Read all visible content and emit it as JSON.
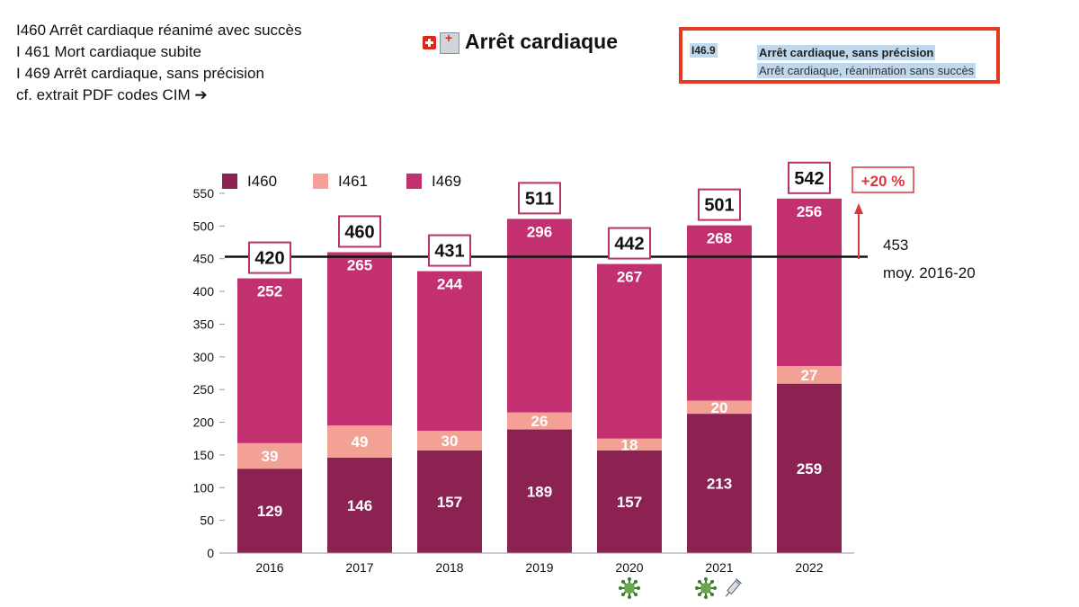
{
  "notes": [
    "I460 Arrêt cardiaque réanimé avec succès",
    "I 461 Mort cardiaque subite",
    "I 469 Arrêt cardiaque, sans précision",
    "cf. extrait PDF codes CIM ➔"
  ],
  "title": "Arrêt cardiaque",
  "cim_box": {
    "code": "I46.9",
    "line1": "Arrêt cardiaque, sans précision",
    "line2": "Arrêt cardiaque, réanimation sans succès"
  },
  "chart_data": {
    "type": "bar",
    "stacked": true,
    "categories": [
      "2016",
      "2017",
      "2018",
      "2019",
      "2020",
      "2021",
      "2022"
    ],
    "series": [
      {
        "name": "I460",
        "values": [
          129,
          146,
          157,
          189,
          157,
          213,
          259
        ],
        "color": "#8b2252"
      },
      {
        "name": "I461",
        "values": [
          39,
          49,
          30,
          26,
          18,
          20,
          27
        ],
        "color": "#f3a095"
      },
      {
        "name": "I469",
        "values": [
          252,
          265,
          244,
          296,
          267,
          268,
          256
        ],
        "color": "#c2306f"
      }
    ],
    "totals": [
      420,
      460,
      431,
      511,
      442,
      501,
      542
    ],
    "ylim": [
      0,
      550
    ],
    "yticks": [
      0,
      50,
      100,
      150,
      200,
      250,
      300,
      350,
      400,
      450,
      500,
      550
    ],
    "reference_line": {
      "value": 453,
      "label_value": "453",
      "label_text": "moy. 2016-20"
    },
    "increase_label": "+20 %",
    "legend_position": "top-left",
    "markers": {
      "2020": [
        "virus-icon"
      ],
      "2021": [
        "virus-icon",
        "syringe-icon"
      ]
    },
    "colors": {
      "total_box_border": "#b8336a",
      "increase": "#d9363e",
      "ref_line": "#111111"
    }
  }
}
